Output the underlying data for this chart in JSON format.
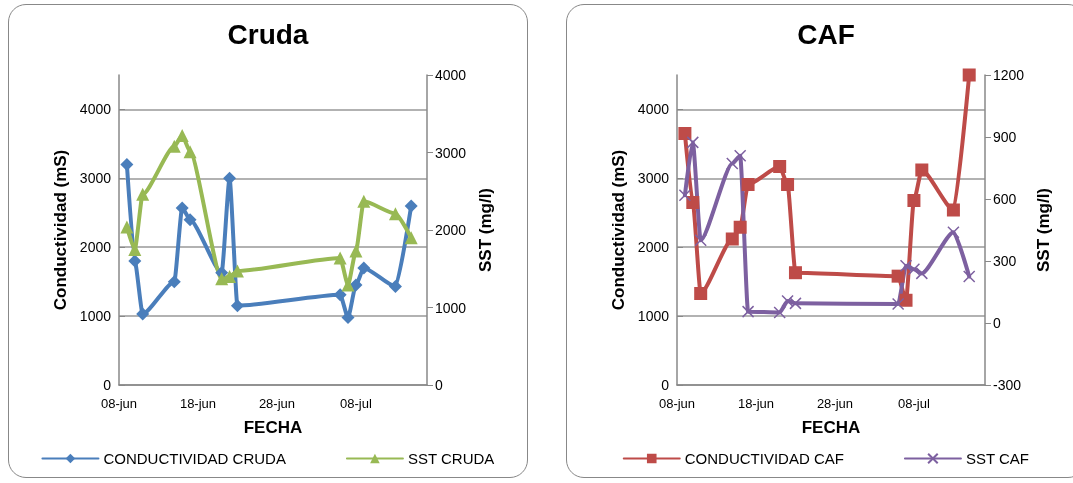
{
  "chart_data": [
    {
      "type": "line",
      "title": "Cruda",
      "xlabel": "FECHA",
      "ylabel": "Conductividad (mS)",
      "y2label": "SST (mg/l)",
      "xlim": [
        "--06-08",
        "--07-17"
      ],
      "xticks": [
        {
          "value": "--06-08",
          "label": "08-jun"
        },
        {
          "value": "--06-18",
          "label": "18-jun"
        },
        {
          "value": "--06-28",
          "label": "28-jun"
        },
        {
          "value": "--07-08",
          "label": "08-jul"
        }
      ],
      "ylim": [
        0,
        4500
      ],
      "yticks": [
        0,
        1000,
        2000,
        3000,
        4000
      ],
      "y2lim": [
        0,
        4000
      ],
      "y2ticks": [
        0,
        1000,
        2000,
        3000,
        4000
      ],
      "grid": "y",
      "legend": "bottom",
      "series": [
        {
          "name": "CONDUCTIVIDAD CRUDA",
          "color": "#4a7ebb",
          "marker": "diamond",
          "x": [
            "--06-09",
            "--06-10",
            "--06-11",
            "--06-15",
            "--06-16",
            "--06-17",
            "--06-21",
            "--06-22",
            "--06-23",
            "--07-06",
            "--07-07",
            "--07-08",
            "--07-09",
            "--07-13",
            "--07-15"
          ],
          "values": [
            3200,
            1800,
            1030,
            1500,
            2570,
            2400,
            1630,
            3000,
            1150,
            1310,
            980,
            1450,
            1700,
            1430,
            2600
          ]
        },
        {
          "name": "SST CRUDA",
          "color": "#98b954",
          "marker": "triangle",
          "axis": "y2",
          "x": [
            "--06-09",
            "--06-10",
            "--06-11",
            "--06-15",
            "--06-16",
            "--06-17",
            "--06-21",
            "--06-22",
            "--06-23",
            "--07-06",
            "--07-07",
            "--07-08",
            "--07-09",
            "--07-13",
            "--07-15"
          ],
          "values": [
            2040,
            1750,
            2460,
            3080,
            3220,
            3010,
            1370,
            1400,
            1470,
            1640,
            1290,
            1730,
            2370,
            2210,
            1900
          ]
        }
      ]
    },
    {
      "type": "line",
      "title": "CAF",
      "xlabel": "FECHA",
      "ylabel": "Conductividad (mS)",
      "y2label": "SST (mg/l)",
      "xlim": [
        "--06-08",
        "--07-17"
      ],
      "xticks": [
        {
          "value": "--06-08",
          "label": "08-jun"
        },
        {
          "value": "--06-18",
          "label": "18-jun"
        },
        {
          "value": "--06-28",
          "label": "28-jun"
        },
        {
          "value": "--07-08",
          "label": "08-jul"
        }
      ],
      "ylim": [
        0,
        4500
      ],
      "yticks": [
        0,
        1000,
        2000,
        3000,
        4000
      ],
      "y2lim": [
        -300,
        1200
      ],
      "y2ticks": [
        -300,
        0,
        300,
        600,
        900,
        1200
      ],
      "grid": "y",
      "legend": "bottom",
      "series": [
        {
          "name": "CONDUCTIVIDAD CAF",
          "color": "#be4b48",
          "marker": "square",
          "x": [
            "--06-09",
            "--06-10",
            "--06-11",
            "--06-15",
            "--06-16",
            "--06-17",
            "--06-21",
            "--06-22",
            "--06-23",
            "--07-06",
            "--07-07",
            "--07-08",
            "--07-09",
            "--07-13",
            "--07-15"
          ],
          "values": [
            3650,
            2650,
            1330,
            2120,
            2290,
            2910,
            3170,
            2910,
            1630,
            1580,
            1230,
            2680,
            3120,
            2540,
            4500
          ]
        },
        {
          "name": "SST CAF",
          "color": "#7d60a0",
          "marker": "cross",
          "axis": "y2",
          "x": [
            "--06-09",
            "--06-10",
            "--06-11",
            "--06-15",
            "--06-16",
            "--06-17",
            "--06-21",
            "--06-22",
            "--06-23",
            "--07-06",
            "--07-07",
            "--07-08",
            "--07-09",
            "--07-13",
            "--07-15"
          ],
          "values": [
            618,
            874,
            400,
            772,
            809,
            55,
            51,
            106,
            95,
            92,
            277,
            260,
            240,
            439,
            225
          ]
        }
      ]
    }
  ]
}
